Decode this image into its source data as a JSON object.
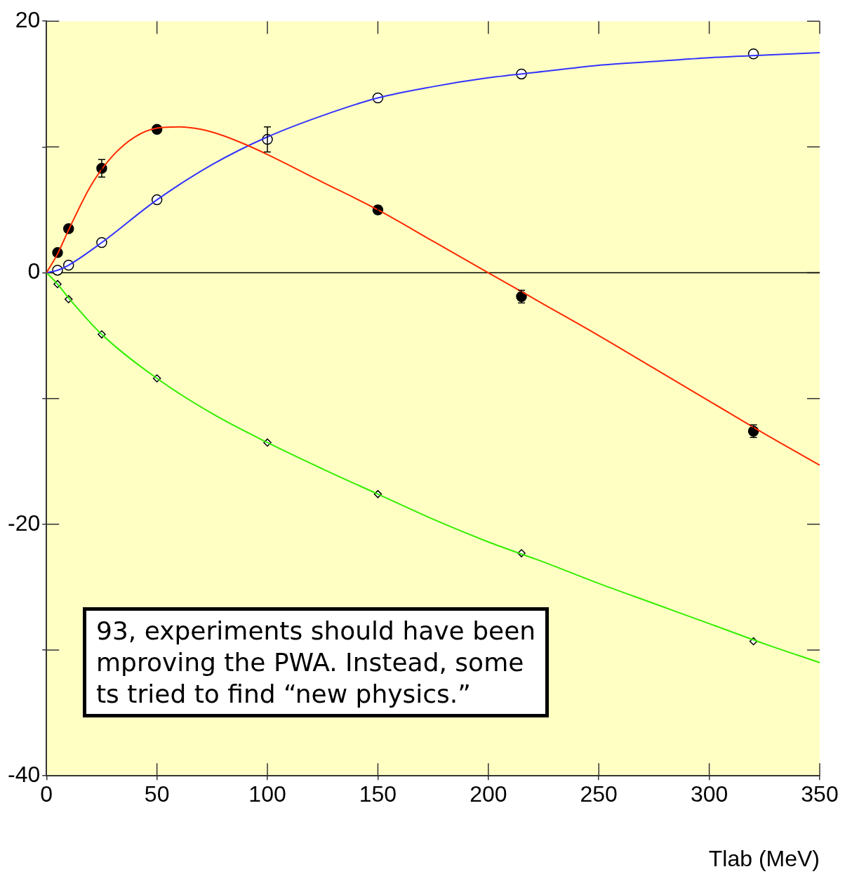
{
  "chart_data": {
    "type": "line",
    "xlabel": "Tlab (MeV)",
    "xlim": [
      0,
      350
    ],
    "xticks": [
      0,
      50,
      100,
      150,
      200,
      250,
      300,
      350
    ],
    "ylim": [
      -40,
      20
    ],
    "yticks": [
      -40,
      {
        "value": -30,
        "label": null
      },
      -20,
      {
        "value": -10,
        "label": null
      },
      0,
      {
        "value": 10,
        "label": null
      },
      20
    ],
    "grid": false,
    "legend": false,
    "ref_lines": [
      {
        "axis": "y",
        "value": 0,
        "color": "#000000"
      }
    ],
    "annotations": [
      "93, experiments should have been\nmproving the PWA. Instead, some\nts tried to find “new physics.”"
    ],
    "series": [
      {
        "marker": "none",
        "color": "#ff2a00",
        "x": [
          0,
          5,
          10,
          20,
          30,
          40,
          50,
          60,
          70,
          80,
          90,
          100,
          125,
          150,
          175,
          200,
          225,
          250,
          275,
          300,
          325,
          350
        ],
        "values": [
          0,
          1.5,
          3.4,
          6.9,
          9.3,
          10.8,
          11.5,
          11.6,
          11.4,
          10.9,
          10.2,
          9.4,
          7.2,
          5.0,
          2.5,
          0,
          -2.5,
          -5.0,
          -7.6,
          -10.2,
          -12.8,
          -15.3
        ]
      },
      {
        "marker": "none",
        "color": "#3333ff",
        "x": [
          0,
          5,
          10,
          25,
          50,
          75,
          100,
          125,
          150,
          175,
          200,
          225,
          250,
          275,
          300,
          325,
          350
        ],
        "values": [
          0,
          0.2,
          0.6,
          2.4,
          5.8,
          8.6,
          10.8,
          12.5,
          13.9,
          14.8,
          15.5,
          16.0,
          16.5,
          16.8,
          17.1,
          17.3,
          17.5
        ]
      },
      {
        "marker": "none",
        "color": "#33ee00",
        "x": [
          0,
          5,
          10,
          25,
          50,
          75,
          100,
          125,
          150,
          175,
          200,
          225,
          250,
          275,
          300,
          325,
          350
        ],
        "values": [
          0,
          -0.9,
          -2.0,
          -4.9,
          -8.4,
          -11.2,
          -13.5,
          -15.6,
          -17.6,
          -19.6,
          -21.4,
          -23.0,
          -24.7,
          -26.3,
          -27.9,
          -29.5,
          -31.0
        ]
      },
      {
        "type": "scatter",
        "marker": "circle",
        "color": "#000000",
        "x": [
          5,
          10,
          25,
          50,
          150,
          215,
          320
        ],
        "values": [
          1.6,
          3.5,
          8.3,
          11.4,
          5.0,
          -1.9,
          -12.6
        ],
        "errors": [
          null,
          null,
          0.7,
          null,
          0.3,
          0.5,
          0.5
        ]
      },
      {
        "type": "scatter",
        "marker": "circle",
        "color": "#ffffff",
        "x": [
          5,
          10,
          25,
          50,
          100,
          150,
          215,
          320
        ],
        "values": [
          0.2,
          0.6,
          2.4,
          5.8,
          10.6,
          13.9,
          15.8,
          17.4
        ],
        "errors": [
          null,
          null,
          null,
          null,
          1.0,
          null,
          null,
          null
        ]
      },
      {
        "type": "scatter",
        "marker": "diamond",
        "color": "#ffffff",
        "x": [
          5,
          10,
          25,
          50,
          100,
          150,
          215,
          320
        ],
        "values": [
          -0.9,
          -2.1,
          -4.9,
          -8.4,
          -13.5,
          -17.6,
          -22.3,
          -29.3
        ]
      }
    ]
  }
}
